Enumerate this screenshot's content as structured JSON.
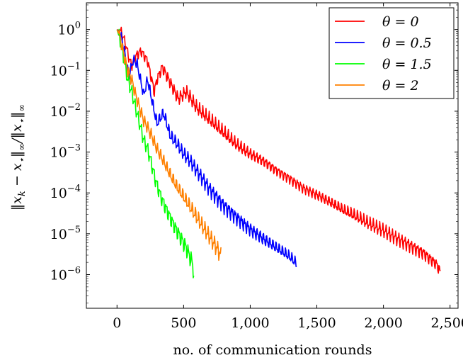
{
  "chart_data": {
    "type": "line",
    "title": "",
    "xlabel": "no. of communication rounds",
    "ylabel": "‖x_k − x_⋆‖_∞/‖x_⋆‖_∞",
    "xscale": "linear",
    "yscale": "log",
    "xlim": [
      -230,
      2560
    ],
    "ylim": [
      1.5e-07,
      4.5
    ],
    "xticks": [
      0,
      500,
      1000,
      1500,
      2000,
      2500
    ],
    "xtick_labels": [
      "0",
      "500",
      "1,000",
      "1,500",
      "2,000",
      "2,500"
    ],
    "yticks": [
      1,
      0.1,
      0.01,
      0.001,
      0.0001,
      1e-05,
      1e-06
    ],
    "ytick_labels": [
      {
        "base": "10",
        "exp": "0"
      },
      {
        "base": "10",
        "exp": "−1"
      },
      {
        "base": "10",
        "exp": "−2"
      },
      {
        "base": "10",
        "exp": "−3"
      },
      {
        "base": "10",
        "exp": "−4"
      },
      {
        "base": "10",
        "exp": "−5"
      },
      {
        "base": "10",
        "exp": "−6"
      }
    ],
    "grid": false,
    "legend_position": "top-right",
    "series": [
      {
        "name": "θ = 0",
        "color": "#ff0000",
        "oscillation": 0.2,
        "x": [
          0,
          30,
          60,
          90,
          110,
          140,
          180,
          230,
          280,
          300,
          340,
          400,
          460,
          520,
          600,
          700,
          800,
          900,
          1000,
          1100,
          1200,
          1300,
          1400,
          1500,
          1600,
          1700,
          1800,
          1900,
          2000,
          2100,
          2200,
          2300,
          2400,
          2430
        ],
        "y": [
          1,
          0.9,
          0.5,
          0.2,
          0.13,
          0.22,
          0.3,
          0.17,
          0.03,
          0.06,
          0.12,
          0.05,
          0.02,
          0.03,
          0.012,
          0.006,
          0.003,
          0.0015,
          0.0009,
          0.0006,
          0.00035,
          0.00022,
          0.00013,
          9e-05,
          6e-05,
          3.8e-05,
          2.6e-05,
          1.7e-05,
          1.2e-05,
          7.8e-06,
          5.2e-06,
          3.4e-06,
          1.8e-06,
          1.1e-06
        ]
      },
      {
        "name": "θ = 0.5",
        "color": "#0000ff",
        "oscillation": 0.22,
        "x": [
          0,
          25,
          55,
          80,
          95,
          120,
          150,
          200,
          230,
          260,
          300,
          350,
          400,
          450,
          500,
          550,
          600,
          700,
          800,
          900,
          1000,
          1100,
          1200,
          1300,
          1350
        ],
        "y": [
          1,
          0.8,
          0.3,
          0.1,
          0.08,
          0.18,
          0.15,
          0.025,
          0.06,
          0.02,
          0.005,
          0.009,
          0.0025,
          0.0016,
          0.0009,
          0.0006,
          0.00035,
          0.00012,
          5e-05,
          2.5e-05,
          1.3e-05,
          7.5e-06,
          4.5e-06,
          2.7e-06,
          1.8e-06
        ]
      },
      {
        "name": "θ = 1.5",
        "color": "#00ff00",
        "oscillation": 0.28,
        "x": [
          0,
          20,
          50,
          80,
          110,
          140,
          170,
          200,
          230,
          260,
          290,
          330,
          370,
          420,
          470,
          520,
          560,
          578
        ],
        "y": [
          1,
          0.6,
          0.2,
          0.06,
          0.03,
          0.012,
          0.005,
          0.002,
          0.0012,
          0.0005,
          0.0002,
          8e-05,
          4e-05,
          1.8e-05,
          9e-06,
          4.5e-06,
          2.2e-06,
          1.1e-06
        ]
      },
      {
        "name": "θ = 2",
        "color": "#ff8000",
        "oscillation": 0.25,
        "x": [
          0,
          20,
          50,
          80,
          110,
          140,
          170,
          200,
          230,
          260,
          300,
          350,
          400,
          450,
          500,
          550,
          600,
          650,
          700,
          750,
          780
        ],
        "y": [
          1,
          0.7,
          0.25,
          0.1,
          0.06,
          0.025,
          0.012,
          0.006,
          0.004,
          0.0025,
          0.0012,
          0.0006,
          0.00028,
          0.00014,
          8e-05,
          4.5e-05,
          2.5e-05,
          1.4e-05,
          8e-06,
          4.5e-06,
          3e-06
        ]
      }
    ]
  }
}
